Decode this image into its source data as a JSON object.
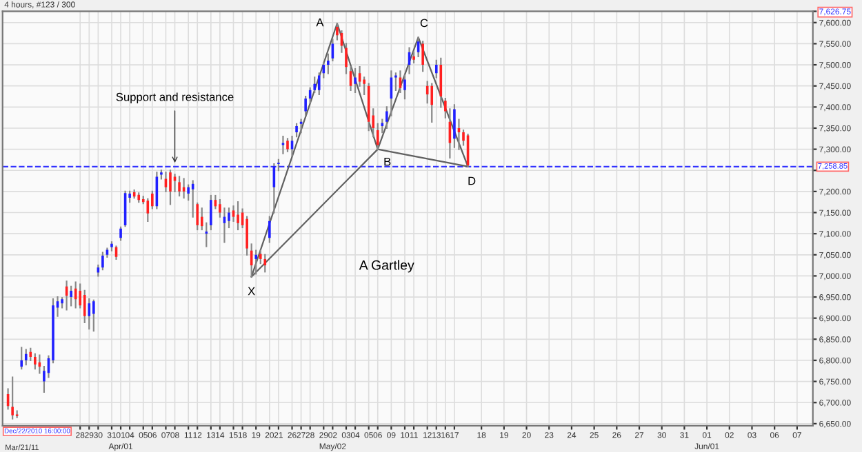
{
  "chart_data": {
    "type": "candlestick",
    "title": "4 hours, #123 / 300",
    "categories": [
      null,
      null,
      null,
      null,
      null,
      null,
      null,
      null,
      null,
      null,
      null,
      null,
      null,
      null,
      null,
      null,
      "28",
      null,
      "29",
      null,
      "30",
      null,
      null,
      "31",
      null,
      "01\nApr/01",
      null,
      "04",
      null,
      null,
      "05",
      null,
      "06",
      null,
      null,
      "07",
      null,
      "08",
      null,
      null,
      "11",
      null,
      "12",
      null,
      null,
      "13",
      null,
      "14",
      null,
      null,
      "15",
      null,
      "18",
      null,
      null,
      "19",
      null,
      null,
      "20",
      null,
      "21",
      null,
      null,
      "26",
      null,
      "27",
      null,
      "28",
      null,
      null,
      "29",
      null,
      "02\nMay/02",
      null,
      null,
      "03",
      null,
      "04",
      null,
      null,
      "05",
      null,
      "06",
      null,
      null,
      "09",
      null,
      null,
      "10",
      null,
      "11",
      null,
      null,
      "12",
      null,
      "13",
      null,
      "16",
      null,
      "17",
      null,
      null,
      null,
      null,
      null,
      "18",
      null,
      null,
      null,
      null,
      "19",
      null,
      null,
      null,
      null,
      "20",
      null,
      null,
      null,
      null,
      "23",
      null,
      null,
      null,
      null,
      "24",
      null,
      null,
      null,
      null,
      "25",
      null,
      null,
      null,
      null,
      "26",
      null,
      null,
      null,
      null,
      "27",
      null,
      null,
      null,
      null,
      "30",
      null,
      null,
      null,
      null,
      "31",
      null,
      null,
      null,
      null,
      "01\nJun/01",
      null,
      null,
      null,
      null,
      "02",
      null,
      null,
      null,
      null,
      "03",
      null,
      null,
      null,
      null,
      "06",
      null,
      null,
      null,
      null,
      "07",
      null,
      null,
      null
    ],
    "ohlc": [
      [
        6720,
        6732,
        6685,
        6692
      ],
      [
        6690,
        6760,
        6662,
        6670
      ],
      [
        6672,
        6680,
        6665,
        6668
      ],
      [
        6785,
        6830,
        6780,
        6800
      ],
      [
        6800,
        6825,
        6790,
        6815
      ],
      [
        6820,
        6828,
        6800,
        6808
      ],
      [
        6808,
        6815,
        6780,
        6790
      ],
      [
        6795,
        6812,
        6770,
        6785
      ],
      [
        6750,
        6785,
        6725,
        6775
      ],
      [
        6770,
        6810,
        6760,
        6805
      ],
      [
        6800,
        6945,
        6795,
        6930
      ],
      [
        6925,
        6950,
        6905,
        6940
      ],
      [
        6935,
        6948,
        6925,
        6945
      ],
      [
        6975,
        6987,
        6920,
        6953
      ],
      [
        6950,
        6975,
        6930,
        6965
      ],
      [
        6970,
        6985,
        6925,
        6945
      ],
      [
        6965,
        6980,
        6925,
        6930
      ],
      [
        6955,
        6965,
        6890,
        6905
      ],
      [
        6905,
        6945,
        6875,
        6935
      ],
      [
        6910,
        6942,
        6870,
        6940
      ],
      [
        7008,
        7025,
        7000,
        7020
      ],
      [
        7020,
        7055,
        7015,
        7048
      ],
      [
        7050,
        7065,
        7045,
        7062
      ],
      [
        7068,
        7080,
        7060,
        7076
      ],
      [
        7068,
        7070,
        7040,
        7045
      ],
      [
        7090,
        7115,
        7085,
        7112
      ],
      [
        7120,
        7200,
        7118,
        7196
      ],
      [
        7185,
        7200,
        7175,
        7195
      ],
      [
        7198,
        7203,
        7185,
        7188
      ],
      [
        7192,
        7196,
        7175,
        7180
      ],
      [
        7182,
        7188,
        7172,
        7175
      ],
      [
        7178,
        7182,
        7130,
        7148
      ],
      [
        7195,
        7200,
        7160,
        7165
      ],
      [
        7165,
        7245,
        7160,
        7235
      ],
      [
        7240,
        7250,
        7230,
        7245
      ],
      [
        7230,
        7245,
        7200,
        7210
      ],
      [
        7245,
        7250,
        7170,
        7200
      ],
      [
        7235,
        7240,
        7200,
        7225
      ],
      [
        7222,
        7235,
        7190,
        7200
      ],
      [
        7210,
        7230,
        7185,
        7200
      ],
      [
        7195,
        7215,
        7180,
        7210
      ],
      [
        7205,
        7225,
        7140,
        7218
      ],
      [
        7170,
        7172,
        7110,
        7120
      ],
      [
        7140,
        7160,
        7110,
        7118
      ],
      [
        7100,
        7125,
        7070,
        7105
      ],
      [
        7120,
        7190,
        7110,
        7180
      ],
      [
        7180,
        7190,
        7160,
        7165
      ],
      [
        7170,
        7180,
        7140,
        7150
      ],
      [
        7125,
        7160,
        7080,
        7140
      ],
      [
        7130,
        7160,
        7115,
        7150
      ],
      [
        7155,
        7165,
        7130,
        7140
      ],
      [
        7145,
        7175,
        7110,
        7125
      ],
      [
        7150,
        7158,
        7115,
        7120
      ],
      [
        7135,
        7140,
        7050,
        7065
      ],
      [
        7060,
        7075,
        6998,
        7025
      ],
      [
        7040,
        7060,
        7005,
        7050
      ],
      [
        7052,
        7060,
        7030,
        7040
      ],
      [
        7040,
        7050,
        7010,
        7025
      ],
      [
        7090,
        7140,
        7080,
        7130
      ],
      [
        7210,
        7265,
        7150,
        7260
      ],
      [
        7265,
        7275,
        7250,
        7268
      ],
      [
        7310,
        7330,
        7290,
        7315
      ],
      [
        7320,
        7325,
        7295,
        7300
      ],
      [
        7300,
        7330,
        7285,
        7320
      ],
      [
        7340,
        7360,
        7330,
        7355
      ],
      [
        7360,
        7370,
        7340,
        7365
      ],
      [
        7390,
        7425,
        7380,
        7420
      ],
      [
        7420,
        7445,
        7410,
        7440
      ],
      [
        7440,
        7470,
        7435,
        7455
      ],
      [
        7440,
        7480,
        7430,
        7475
      ],
      [
        7480,
        7505,
        7470,
        7500
      ],
      [
        7500,
        7525,
        7480,
        7510
      ],
      [
        7515,
        7560,
        7510,
        7550
      ],
      [
        7590,
        7598,
        7560,
        7570
      ],
      [
        7575,
        7580,
        7530,
        7545
      ],
      [
        7540,
        7550,
        7480,
        7495
      ],
      [
        7485,
        7495,
        7440,
        7450
      ],
      [
        7455,
        7490,
        7435,
        7470
      ],
      [
        7480,
        7495,
        7450,
        7460
      ],
      [
        7465,
        7470,
        7430,
        7455
      ],
      [
        7450,
        7455,
        7345,
        7365
      ],
      [
        7380,
        7395,
        7330,
        7350
      ],
      [
        7345,
        7360,
        7300,
        7310
      ],
      [
        7355,
        7370,
        7340,
        7362
      ],
      [
        7365,
        7400,
        7350,
        7390
      ],
      [
        7420,
        7485,
        7380,
        7470
      ],
      [
        7470,
        7480,
        7440,
        7475
      ],
      [
        7470,
        7485,
        7435,
        7445
      ],
      [
        7440,
        7475,
        7420,
        7465
      ],
      [
        7500,
        7540,
        7480,
        7530
      ],
      [
        7520,
        7530,
        7505,
        7512
      ],
      [
        7530,
        7565,
        7520,
        7555
      ],
      [
        7550,
        7555,
        7485,
        7500
      ],
      [
        7450,
        7460,
        7410,
        7430
      ],
      [
        7450,
        7455,
        7365,
        7405
      ],
      [
        7480,
        7510,
        7470,
        7500
      ],
      [
        7500,
        7515,
        7400,
        7425
      ],
      [
        7415,
        7420,
        7375,
        7390
      ],
      [
        7365,
        7395,
        7280,
        7315
      ],
      [
        7325,
        7405,
        7305,
        7395
      ],
      [
        7350,
        7370,
        7300,
        7340
      ],
      [
        7340,
        7345,
        7310,
        7320
      ],
      [
        7333,
        7335,
        7259,
        7262
      ],
      null,
      null,
      null,
      null,
      null,
      null,
      null,
      null,
      null,
      null,
      null,
      null,
      null,
      null,
      null,
      null,
      null,
      null,
      null,
      null,
      null,
      null,
      null,
      null,
      null,
      null,
      null,
      null,
      null,
      null,
      null,
      null,
      null,
      null,
      null,
      null,
      null,
      null,
      null,
      null,
      null,
      null,
      null,
      null,
      null,
      null,
      null,
      null,
      null,
      null,
      null,
      null,
      null,
      null,
      null,
      null,
      null,
      null,
      null,
      null,
      null,
      null,
      null,
      null,
      null,
      null,
      null,
      null,
      null,
      null,
      null,
      null,
      null,
      null,
      null,
      null
    ],
    "colors": [
      "#ff2020",
      "#ff2020",
      "#ff2020",
      "#2020ff",
      "#2020ff",
      "#ff2020",
      "#ff2020",
      "#ff2020",
      "#2020ff",
      "#2020ff",
      "#2020ff",
      "#2020ff",
      "#2020ff",
      "#ff2020",
      "#2020ff",
      "#ff2020",
      "#ff2020",
      "#ff2020",
      "#2020ff",
      "#2020ff",
      "#2020ff",
      "#2020ff",
      "#2020ff",
      "#2020ff",
      "#ff2020",
      "#2020ff",
      "#2020ff",
      "#2020ff",
      "#ff2020",
      "#ff2020",
      "#ff2020",
      "#ff2020",
      "#ff2020",
      "#2020ff",
      "#2020ff",
      "#ff2020",
      "#ff2020",
      "#ff2020",
      "#ff2020",
      "#ff2020",
      "#2020ff",
      "#2020ff",
      "#ff2020",
      "#ff2020",
      "#2020ff",
      "#2020ff",
      "#ff2020",
      "#ff2020",
      "#2020ff",
      "#2020ff",
      "#ff2020",
      "#ff2020",
      "#ff2020",
      "#ff2020",
      "#ff2020",
      "#2020ff",
      "#ff2020",
      "#ff2020",
      "#2020ff",
      "#2020ff",
      "#2020ff",
      "#2020ff",
      "#ff2020",
      "#2020ff",
      "#2020ff",
      "#2020ff",
      "#2020ff",
      "#2020ff",
      "#2020ff",
      "#2020ff",
      "#2020ff",
      "#2020ff",
      "#2020ff",
      "#ff2020",
      "#ff2020",
      "#ff2020",
      "#ff2020",
      "#2020ff",
      "#ff2020",
      "#ff2020",
      "#ff2020",
      "#ff2020",
      "#ff2020",
      "#2020ff",
      "#2020ff",
      "#2020ff",
      "#2020ff",
      "#ff2020",
      "#2020ff",
      "#2020ff",
      "#ff2020",
      "#2020ff",
      "#ff2020",
      "#ff2020",
      "#ff2020",
      "#2020ff",
      "#ff2020",
      "#ff2020",
      "#ff2020",
      "#2020ff",
      "#ff2020",
      "#ff2020",
      "#ff2020",
      null,
      null,
      null,
      null,
      null,
      null,
      null,
      null,
      null,
      null,
      null,
      null,
      null,
      null,
      null,
      null,
      null,
      null,
      null,
      null,
      null,
      null,
      null,
      null,
      null,
      null,
      null,
      null,
      null,
      null,
      null,
      null,
      null,
      null,
      null,
      null,
      null,
      null,
      null,
      null,
      null,
      null,
      null,
      null,
      null,
      null,
      null,
      null,
      null,
      null,
      null,
      null,
      null,
      null,
      null,
      null,
      null,
      null,
      null,
      null,
      null,
      null,
      null,
      null,
      null,
      null,
      null,
      null,
      null,
      null,
      null,
      null,
      null,
      null,
      null,
      null
    ],
    "series": [
      {
        "type": "line",
        "color": "#606060",
        "values": [
          null,
          null,
          null,
          null,
          null,
          null,
          null,
          null,
          null,
          null,
          null,
          null,
          null,
          null,
          null,
          null,
          null,
          null,
          null,
          null,
          null,
          null,
          null,
          null,
          null,
          null,
          null,
          null,
          null,
          null,
          null,
          null,
          null,
          null,
          null,
          null,
          null,
          null,
          null,
          null,
          null,
          null,
          null,
          null,
          null,
          null,
          null,
          null,
          null,
          null,
          null,
          null,
          null,
          null,
          6998,
          null,
          null,
          null,
          null,
          null,
          null,
          null,
          null,
          null,
          null,
          null,
          null,
          null,
          null,
          null,
          null,
          null,
          null,
          7598,
          null,
          null,
          null,
          null,
          null,
          null,
          null,
          null,
          7300,
          null,
          null,
          null,
          null,
          null,
          null,
          null,
          null,
          7565,
          null,
          null,
          null,
          null,
          null,
          null,
          null,
          null,
          null,
          null,
          7259,
          null,
          null,
          null,
          null,
          null,
          null,
          null,
          null,
          null,
          null,
          null,
          null,
          null,
          null,
          null,
          null,
          null,
          null,
          null,
          null,
          null,
          null,
          null,
          null,
          null,
          null,
          null,
          null,
          null,
          null,
          null,
          null,
          null,
          null,
          null,
          null,
          null,
          null,
          null,
          null,
          null,
          null,
          null,
          null,
          null,
          null,
          null,
          null,
          null,
          null,
          null,
          null,
          null,
          null,
          null,
          null,
          null,
          null,
          null,
          null,
          null,
          null,
          null,
          null,
          null,
          null,
          null,
          null,
          null,
          null,
          null,
          null,
          null,
          null,
          null,
          null
        ]
      },
      {
        "type": "line",
        "color": "#606060",
        "values": [
          null,
          null,
          null,
          null,
          null,
          null,
          null,
          null,
          null,
          null,
          null,
          null,
          null,
          null,
          null,
          null,
          null,
          null,
          null,
          null,
          null,
          null,
          null,
          null,
          null,
          null,
          null,
          null,
          null,
          null,
          null,
          null,
          null,
          null,
          null,
          null,
          null,
          null,
          null,
          null,
          null,
          null,
          null,
          null,
          null,
          null,
          null,
          null,
          null,
          null,
          null,
          null,
          null,
          null,
          6998,
          null,
          null,
          null,
          null,
          null,
          null,
          null,
          null,
          null,
          null,
          null,
          null,
          null,
          null,
          null,
          null,
          null,
          null,
          null,
          null,
          null,
          null,
          null,
          null,
          null,
          null,
          null,
          7300,
          null,
          null,
          null,
          null,
          null,
          null,
          null,
          null,
          null,
          null,
          null,
          null,
          null,
          null,
          null,
          null,
          null,
          null,
          null,
          7259,
          null,
          null,
          null,
          null,
          null,
          null,
          null,
          null,
          null,
          null,
          null,
          null,
          null,
          null,
          null,
          null,
          null,
          null,
          null,
          null,
          null,
          null,
          null,
          null,
          null,
          null,
          null,
          null,
          null,
          null,
          null,
          null,
          null,
          null,
          null,
          null,
          null,
          null,
          null,
          null,
          null,
          null,
          null,
          null,
          null,
          null,
          null,
          null,
          null,
          null,
          null,
          null,
          null,
          null,
          null,
          null,
          null,
          null,
          null,
          null,
          null,
          null,
          null,
          null,
          null,
          null,
          null,
          null,
          null,
          null,
          null,
          null,
          null,
          null,
          null,
          null
        ]
      }
    ],
    "ylim": [
      6645,
      7626.75
    ],
    "yticks": [
      {
        "value": 6650,
        "label": "6,650.00"
      },
      {
        "value": 6700,
        "label": "6,700.00"
      },
      {
        "value": 6750,
        "label": "6,750.00"
      },
      {
        "value": 6800,
        "label": "6,800.00"
      },
      {
        "value": 6850,
        "label": "6,850.00"
      },
      {
        "value": 6900,
        "label": "6,900.00"
      },
      {
        "value": 6950,
        "label": "6,950.00"
      },
      {
        "value": 7000,
        "label": "7,000.00"
      },
      {
        "value": 7050,
        "label": "7,050.00"
      },
      {
        "value": 7100,
        "label": "7,100.00"
      },
      {
        "value": 7150,
        "label": "7,150.00"
      },
      {
        "value": 7200,
        "label": "7,200.00"
      },
      {
        "value": 7250,
        "label": null
      },
      {
        "value": 7300,
        "label": "7,300.00"
      },
      {
        "value": 7350,
        "label": "7,350.00"
      },
      {
        "value": 7400,
        "label": "7,400.00"
      },
      {
        "value": 7450,
        "label": "7,450.00"
      },
      {
        "value": 7500,
        "label": "7,500.00"
      },
      {
        "value": 7550,
        "label": "7,550.00"
      },
      {
        "value": 7600,
        "label": "7,600.00"
      },
      {
        "value": 7626.75,
        "label": "7,626.75"
      }
    ],
    "ref_lines": [
      {
        "axis": "y",
        "value": 7258.85,
        "label": "7,258.85",
        "color": "#3333ff",
        "line_style": "dashed"
      }
    ],
    "annotations": [
      {
        "text": "Support and resistance",
        "x": "08",
        "y": 7258.85
      },
      "A Gartley",
      "Dec/22/2010 16:00:00",
      "Mar/21/11",
      "X",
      "A",
      "B",
      "C",
      "D"
    ],
    "grid": true
  }
}
